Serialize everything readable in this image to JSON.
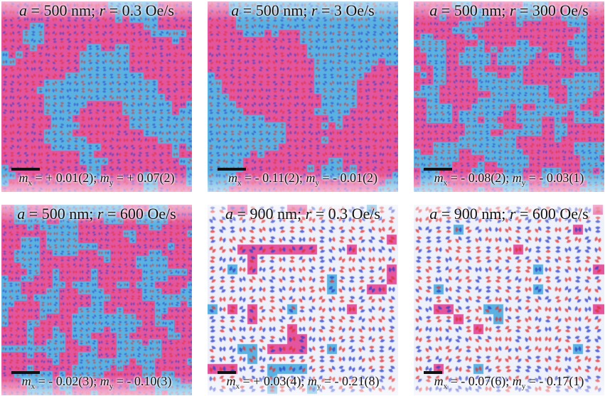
{
  "colors": {
    "pink": "#e4559e",
    "blue": "#5ab2e2",
    "arrow_red": "#e03030",
    "arrow_blue": "#2a3ec8",
    "background": "#ffffff"
  },
  "panels": [
    {
      "title_a": "a",
      "title_a_val": " = 500 nm; ",
      "title_r": "r",
      "title_r_val": " = 0.3 Oe/s",
      "mx_label": "m",
      "mx_sub": "x",
      "mx_val": " = + 0.01(2); ",
      "my_label": "m",
      "my_sub": "y",
      "my_val": " = + 0.07(2)",
      "domain_fraction_pink": 0.55,
      "domain_fraction_blue": 0.45,
      "texture": "coarse-domains"
    },
    {
      "title_a": "a",
      "title_a_val": " = 500 nm; ",
      "title_r": "r",
      "title_r_val": " = 3 Oe/s",
      "mx_label": "m",
      "mx_sub": "x",
      "mx_val": " = - 0.11(2); ",
      "my_label": "m",
      "my_sub": "y",
      "my_val": " = - 0.01(2)",
      "domain_fraction_pink": 0.45,
      "domain_fraction_blue": 0.55,
      "texture": "large-domains"
    },
    {
      "title_a": "a",
      "title_a_val": " = 500 nm; ",
      "title_r": "r",
      "title_r_val": " = 300 Oe/s",
      "mx_label": "m",
      "mx_sub": "x",
      "mx_val": " = - 0.08(2); ",
      "my_label": "m",
      "my_sub": "y",
      "my_val": " = - 0.03(1)",
      "domain_fraction_pink": 0.5,
      "domain_fraction_blue": 0.5,
      "texture": "fine-domains"
    },
    {
      "title_a": "a",
      "title_a_val": " = 500 nm; ",
      "title_r": "r",
      "title_r_val": " = 600 Oe/s",
      "mx_label": "m",
      "mx_sub": "x",
      "mx_val": " = - 0.02(3); ",
      "my_label": "m",
      "my_sub": "y",
      "my_val": " = - 0.10(3)",
      "domain_fraction_pink": 0.55,
      "domain_fraction_blue": 0.45,
      "texture": "fine-domains"
    },
    {
      "title_a": "a",
      "title_a_val": " = 900 nm; ",
      "title_r": "r",
      "title_r_val": " = 0.3 Oe/s",
      "mx_label": "m",
      "mx_sub": "x",
      "mx_val": " = + 0.03(4); ",
      "my_label": "m",
      "my_sub": "y",
      "my_val": " = - 0.21(8)",
      "domain_fraction_pink": 0.12,
      "domain_fraction_blue": 0.1,
      "texture": "sparse"
    },
    {
      "title_a": "a",
      "title_a_val": " = 900 nm; ",
      "title_r": "r",
      "title_r_val": " = 600 Oe/s",
      "mx_label": "m",
      "mx_sub": "x",
      "mx_val": " = - 0.07(6); ",
      "my_label": "m",
      "my_sub": "y",
      "my_val": " = - 0.17(1)",
      "domain_fraction_pink": 0.1,
      "domain_fraction_blue": 0.08,
      "texture": "sparse"
    }
  ]
}
